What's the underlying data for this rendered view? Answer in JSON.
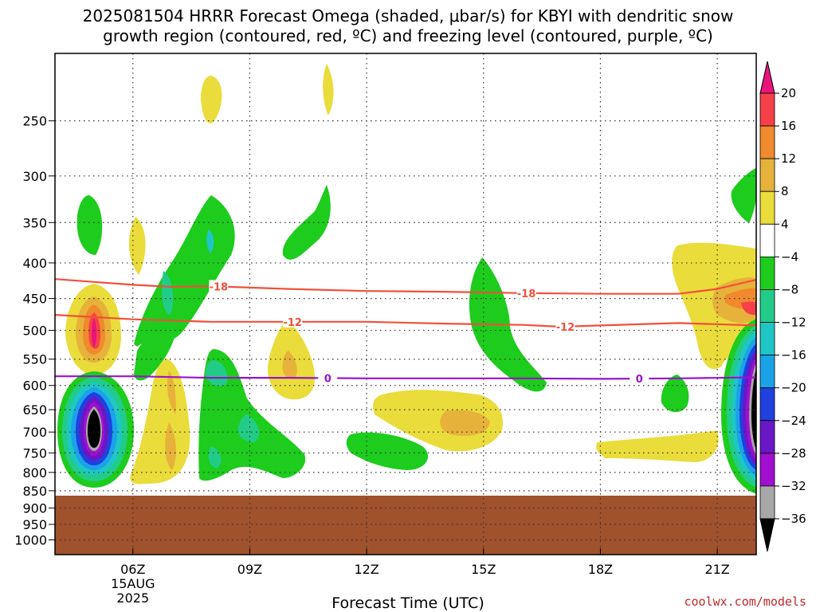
{
  "title_line1": "2025081504 HRRR Forecast Omega (shaded, μbar/s) for KBYI with dendritic snow",
  "title_line2": "growth region (contoured, red, ºC) and freezing level (contoured, purple, ºC)",
  "credit": "coolwx.com/models",
  "chart_data": {
    "type": "time-height cross section",
    "title": "2025081504 HRRR Forecast Omega (shaded, μbar/s) for KBYI with dendritic snow growth region (contoured, red, ºC) and freezing level (contoured, purple, ºC)",
    "xlabel": "Forecast Time (UTC)",
    "x_ticks": [
      {
        "hour": 6,
        "label": "06Z",
        "date1": "15AUG",
        "date2": "2025"
      },
      {
        "hour": 9,
        "label": "09Z"
      },
      {
        "hour": 12,
        "label": "12Z"
      },
      {
        "hour": 15,
        "label": "15Z"
      },
      {
        "hour": 18,
        "label": "18Z"
      },
      {
        "hour": 21,
        "label": "21Z"
      }
    ],
    "x_range_hours": [
      4,
      22
    ],
    "y_scale": "log-pressure (hPa)",
    "y_ticks": [
      250,
      300,
      350,
      400,
      450,
      500,
      550,
      600,
      650,
      700,
      750,
      800,
      850,
      900,
      950,
      1000
    ],
    "y_range_hpa": [
      200,
      1050
    ],
    "surface_pressure_hpa": 868,
    "grid": true,
    "colorbar": {
      "levels": [
        "20",
        "16",
        "12",
        "8",
        "4",
        "−4",
        "−8",
        "−12",
        "−16",
        "−20",
        "−24",
        "−28",
        "−32",
        "−36"
      ],
      "colors": [
        "#e8157b",
        "#f5404a",
        "#f08a2d",
        "#e7b23a",
        "#eadc3a",
        "#ffffff",
        "#1dcc1d",
        "#22cc88",
        "#1fc6c6",
        "#1aa3e8",
        "#2040e0",
        "#6a17c8",
        "#a20fd0",
        "#a8a8a8",
        "#000000"
      ]
    },
    "contours": [
      {
        "label": "-18",
        "color": "#f0503a",
        "points": [
          [
            4.0,
            422
          ],
          [
            5.0,
            426
          ],
          [
            6.0,
            430
          ],
          [
            7.0,
            433
          ],
          [
            8.0,
            432
          ],
          [
            10.0,
            436
          ],
          [
            12.0,
            439
          ],
          [
            14.0,
            440
          ],
          [
            16.0,
            442
          ],
          [
            18.0,
            443
          ],
          [
            20.0,
            443
          ],
          [
            21.0,
            436
          ],
          [
            22.0,
            423
          ]
        ],
        "label_at": [
          8.2,
          16.1
        ]
      },
      {
        "label": "-12",
        "color": "#f0503a",
        "points": [
          [
            4.0,
            475
          ],
          [
            6.0,
            482
          ],
          [
            8.0,
            486
          ],
          [
            10.0,
            486
          ],
          [
            12.0,
            486
          ],
          [
            14.0,
            489
          ],
          [
            16.0,
            491
          ],
          [
            17.0,
            494
          ],
          [
            18.0,
            492
          ],
          [
            20.0,
            488
          ],
          [
            22.0,
            492
          ]
        ],
        "label_at": [
          10.1,
          17.1
        ]
      },
      {
        "label": "0",
        "color": "#9a12c8",
        "points": [
          [
            4.0,
            582
          ],
          [
            6.0,
            582
          ],
          [
            8.0,
            585
          ],
          [
            10.0,
            585
          ],
          [
            12.0,
            586
          ],
          [
            14.0,
            586
          ],
          [
            16.0,
            586
          ],
          [
            18.0,
            587
          ],
          [
            20.0,
            586
          ],
          [
            22.0,
            584
          ]
        ],
        "label_at": [
          11.0,
          19.0
        ]
      }
    ]
  }
}
